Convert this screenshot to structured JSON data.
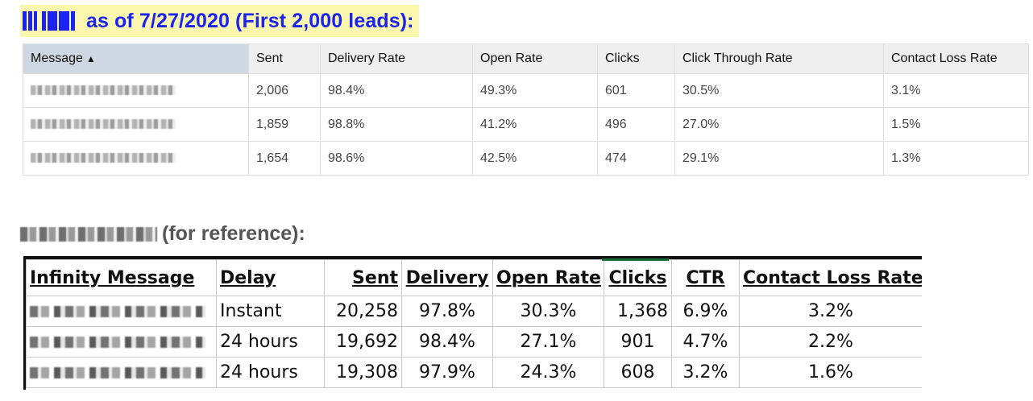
{
  "section1": {
    "heading": "as of 7/27/2020 (First 2,000 leads):",
    "highlight_color": "#fbf7ae",
    "heading_color": "#1a23f0",
    "columns": [
      "Message",
      "Sent",
      "Delivery Rate",
      "Open Rate",
      "Clicks",
      "Click Through Rate",
      "Contact Loss Rate"
    ],
    "sort_indicator": "▲",
    "rows": [
      {
        "sent": "2,006",
        "delivery_rate": "98.4%",
        "open_rate": "49.3%",
        "clicks": "601",
        "ctr": "30.5%",
        "contact_loss_rate": "3.1%"
      },
      {
        "sent": "1,859",
        "delivery_rate": "98.8%",
        "open_rate": "41.2%",
        "clicks": "496",
        "ctr": "27.0%",
        "contact_loss_rate": "1.5%"
      },
      {
        "sent": "1,654",
        "delivery_rate": "98.6%",
        "open_rate": "42.5%",
        "clicks": "474",
        "ctr": "29.1%",
        "contact_loss_rate": "1.3%"
      }
    ]
  },
  "section2": {
    "heading": "(for reference):",
    "columns": [
      "Infinity Message",
      "Delay",
      "Sent",
      "Delivery",
      "Open Rate",
      "Clicks",
      "CTR",
      "Contact Loss Rate"
    ],
    "rows": [
      {
        "delay": "Instant",
        "sent": "20,258",
        "delivery": "97.8%",
        "open_rate": "30.3%",
        "clicks": "1,368",
        "ctr": "6.9%",
        "contact_loss_rate": "3.2%"
      },
      {
        "delay": "24 hours",
        "sent": "19,692",
        "delivery": "98.4%",
        "open_rate": "27.1%",
        "clicks": "901",
        "ctr": "4.7%",
        "contact_loss_rate": "2.2%"
      },
      {
        "delay": "24 hours",
        "sent": "19,308",
        "delivery": "97.9%",
        "open_rate": "24.3%",
        "clicks": "608",
        "ctr": "3.2%",
        "contact_loss_rate": "1.6%"
      }
    ]
  }
}
